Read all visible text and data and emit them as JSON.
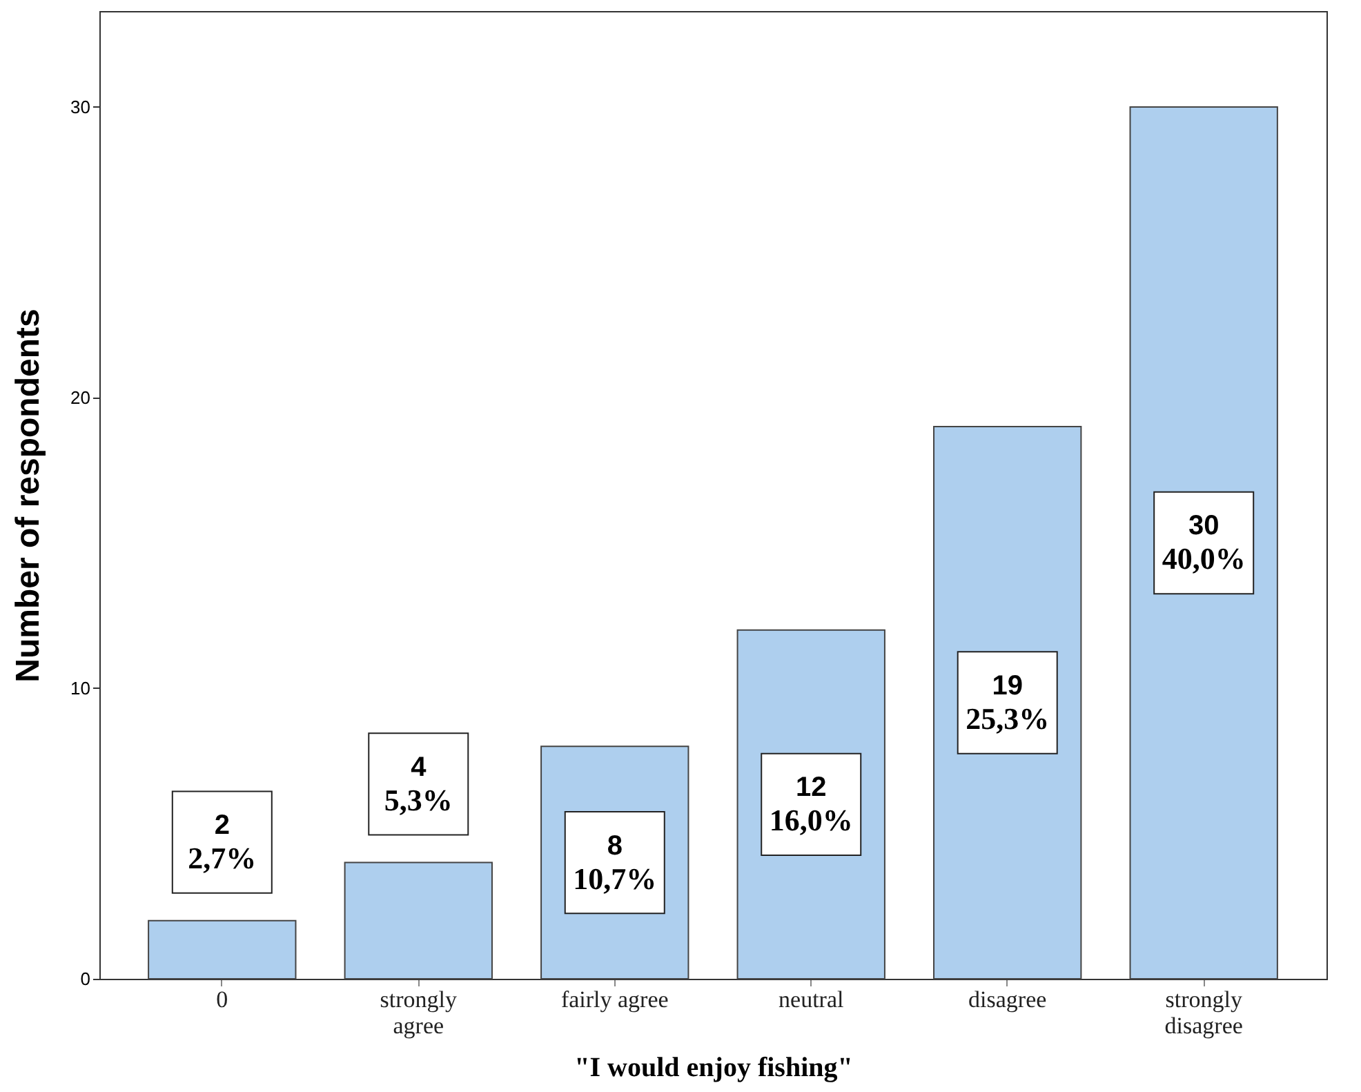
{
  "chart_data": {
    "type": "bar",
    "xlabel": "\"I would enjoy fishing\"",
    "ylabel": "Number of respondents",
    "categories": [
      "0",
      "strongly\nagree",
      "fairly agree",
      "neutral",
      "disagree",
      "strongly\ndisagree"
    ],
    "values": [
      2,
      4,
      8,
      12,
      19,
      30
    ],
    "color": "#aecfee",
    "value_labels": [
      "2\n2,7%",
      "4\n5,3%",
      "8\n10,7%",
      "12\n16,0%",
      "19\n25,3%",
      "30\n40,0%"
    ],
    "ylim": [
      0,
      33.3
    ],
    "yticks": [
      0,
      10,
      20,
      30
    ],
    "grid": false
  }
}
